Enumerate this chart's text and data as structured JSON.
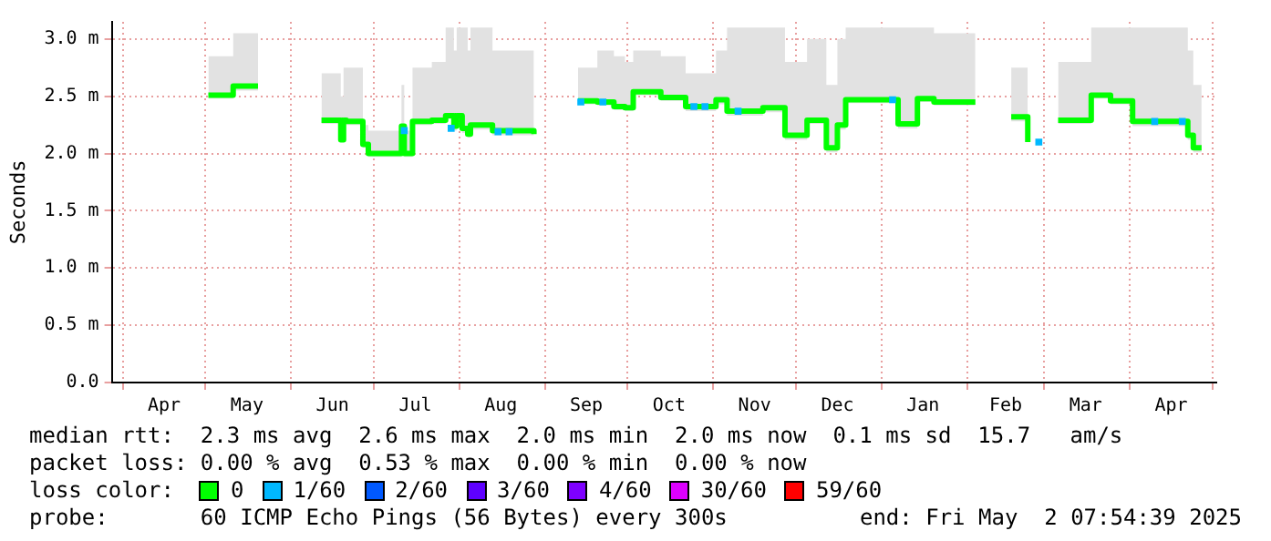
{
  "chart_data": {
    "type": "step",
    "ylabel": "Seconds",
    "legend_title": "loss color:",
    "legend": "bottom",
    "grid": true,
    "xlim": [
      "2024-03-28",
      "2025-05-02T07:54"
    ],
    "xticks": [
      {
        "value": "2024-04-01",
        "label": null
      },
      {
        "value": "2024-04-16",
        "label": "Apr"
      },
      {
        "value": "2024-05-01",
        "label": null
      },
      {
        "value": "2024-05-16",
        "label": "May"
      },
      {
        "value": "2024-06-01",
        "label": null
      },
      {
        "value": "2024-06-16",
        "label": "Jun"
      },
      {
        "value": "2024-07-01",
        "label": null
      },
      {
        "value": "2024-07-16",
        "label": "Jul"
      },
      {
        "value": "2024-08-01",
        "label": null
      },
      {
        "value": "2024-08-16",
        "label": "Aug"
      },
      {
        "value": "2024-09-01",
        "label": null
      },
      {
        "value": "2024-09-16",
        "label": "Sep"
      },
      {
        "value": "2024-10-01",
        "label": null
      },
      {
        "value": "2024-10-16",
        "label": "Oct"
      },
      {
        "value": "2024-11-01",
        "label": null
      },
      {
        "value": "2024-11-16",
        "label": "Nov"
      },
      {
        "value": "2024-12-01",
        "label": null
      },
      {
        "value": "2024-12-16",
        "label": "Dec"
      },
      {
        "value": "2025-01-01",
        "label": null
      },
      {
        "value": "2025-01-16",
        "label": "Jan"
      },
      {
        "value": "2025-02-01",
        "label": null
      },
      {
        "value": "2025-02-15",
        "label": "Feb"
      },
      {
        "value": "2025-03-01",
        "label": null
      },
      {
        "value": "2025-03-16",
        "label": "Mar"
      },
      {
        "value": "2025-04-01",
        "label": null
      },
      {
        "value": "2025-04-16",
        "label": "Apr"
      },
      {
        "value": "2025-05-01",
        "label": null
      }
    ],
    "ylim": [
      0,
      3.15
    ],
    "yticks": [
      {
        "value": 0,
        "label": "0.0"
      },
      {
        "value": 0.5,
        "label": "0.5 m"
      },
      {
        "value": 1,
        "label": "1.0 m"
      },
      {
        "value": 1.5,
        "label": "1.5 m"
      },
      {
        "value": 2,
        "label": "2.0 m"
      },
      {
        "value": 2.5,
        "label": "2.5 m"
      },
      {
        "value": 3,
        "label": "3.0 m"
      }
    ],
    "series": [
      {
        "name": "0",
        "color": "#00ff00",
        "x": [
          "2024-05-02",
          "2024-05-11",
          "2024-05-20",
          "2024-05-21",
          "2024-06-12",
          "2024-06-19",
          "2024-06-20",
          "2024-06-21",
          "2024-06-27",
          "2024-06-29",
          "2024-07-11",
          "2024-07-12",
          "2024-07-15",
          "2024-07-22",
          "2024-07-27",
          "2024-07-30",
          "2024-07-31",
          "2024-08-02",
          "2024-08-04",
          "2024-08-05",
          "2024-08-13",
          "2024-08-28",
          "2024-08-29",
          "2024-09-13",
          "2024-09-20",
          "2024-09-26",
          "2024-09-30",
          "2024-10-03",
          "2024-10-13",
          "2024-10-22",
          "2024-11-02",
          "2024-11-06",
          "2024-11-19",
          "2024-11-27",
          "2024-12-05",
          "2024-12-12",
          "2024-12-16",
          "2024-12-19",
          "2025-01-07",
          "2025-01-14",
          "2025-01-20",
          "2025-02-04",
          "2025-02-05",
          "2025-02-17",
          "2025-02-23",
          "2025-03-04",
          "2025-03-06",
          "2025-03-18",
          "2025-03-25",
          "2025-04-02",
          "2025-04-22",
          "2025-04-24",
          "2025-04-27"
        ],
        "values": [
          2.51,
          2.59,
          2.59,
          null,
          2.29,
          2.12,
          2.29,
          2.28,
          2.08,
          2.0,
          2.24,
          2.0,
          2.28,
          2.29,
          2.33,
          2.24,
          2.33,
          2.22,
          2.17,
          2.25,
          2.2,
          2.17,
          null,
          2.46,
          2.45,
          2.41,
          2.4,
          2.54,
          2.49,
          2.41,
          2.47,
          2.37,
          2.4,
          2.16,
          2.29,
          2.05,
          2.25,
          2.47,
          2.26,
          2.48,
          2.45,
          2.45,
          null,
          2.32,
          2.1,
          null,
          2.29,
          2.51,
          2.46,
          2.28,
          2.16,
          2.05,
          2.05
        ],
        "lower": [
          2.48,
          2.55,
          2.55,
          null,
          2.26,
          2.1,
          2.26,
          2.25,
          2.05,
          1.97,
          2.2,
          1.97,
          2.25,
          2.26,
          2.3,
          2.2,
          2.3,
          2.18,
          2.14,
          2.21,
          2.16,
          2.12,
          null,
          2.43,
          2.42,
          2.38,
          2.37,
          2.51,
          2.46,
          2.37,
          2.43,
          2.33,
          2.36,
          2.12,
          2.26,
          2.01,
          2.21,
          2.44,
          2.22,
          2.45,
          2.42,
          2.42,
          null,
          2.28,
          2.06,
          null,
          2.26,
          2.48,
          2.43,
          2.24,
          2.12,
          2.01,
          2.01
        ],
        "upper": [
          2.85,
          3.05,
          3.1,
          null,
          2.7,
          2.5,
          2.75,
          2.75,
          2.25,
          2.2,
          2.6,
          2.2,
          2.75,
          2.8,
          3.1,
          2.9,
          3.1,
          3.1,
          2.9,
          3.1,
          2.9,
          2.7,
          null,
          2.75,
          2.9,
          2.85,
          2.8,
          2.9,
          2.85,
          2.7,
          2.9,
          3.1,
          3.1,
          2.8,
          3.0,
          2.6,
          3.0,
          3.1,
          3.1,
          3.1,
          3.05,
          2.9,
          null,
          2.75,
          2.6,
          null,
          2.8,
          3.1,
          3.1,
          3.1,
          2.9,
          2.6,
          2.5
        ]
      },
      {
        "name": "1/60",
        "color": "#00b8ff",
        "type": "scatter",
        "x": [
          "2024-07-12",
          "2024-07-29",
          "2024-08-15",
          "2024-08-19",
          "2024-09-14",
          "2024-09-22",
          "2024-10-25",
          "2024-10-29",
          "2024-11-10",
          "2025-01-05",
          "2025-02-27",
          "2025-04-10",
          "2025-04-20"
        ],
        "values": [
          2.2,
          2.22,
          2.19,
          2.19,
          2.45,
          2.45,
          2.41,
          2.41,
          2.37,
          2.47,
          2.1,
          2.28,
          2.28
        ]
      },
      {
        "name": "2/60",
        "color": "#0059ff",
        "type": "scatter"
      },
      {
        "name": "3/60",
        "color": "#5e00ff",
        "type": "scatter"
      },
      {
        "name": "4/60",
        "color": "#7e00ff",
        "type": "scatter"
      },
      {
        "name": "30/60",
        "color": "#dd00ff",
        "type": "scatter"
      },
      {
        "name": "59/60",
        "color": "#ff0000",
        "type": "scatter"
      }
    ],
    "annotations": [
      "median rtt:  2.3 ms avg  2.6 ms max  2.0 ms min  2.0 ms now  0.1 ms sd  15.7   am/s",
      "packet loss: 0.00 % avg  0.53 % max  0.00 % min  0.00 % now",
      "probe:       60 ICMP Echo Pings (56 Bytes) every 300s",
      "end: Fri May  2 07:54:39 2025"
    ]
  }
}
